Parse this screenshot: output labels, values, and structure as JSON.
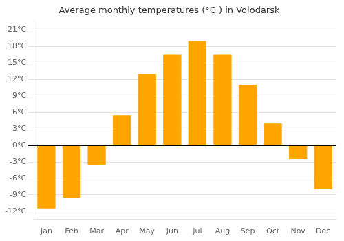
{
  "chart_data": {
    "type": "bar",
    "title": "Average monthly temperatures (°C ) in Volodarsk",
    "categories": [
      "Jan",
      "Feb",
      "Mar",
      "Apr",
      "May",
      "Jun",
      "Jul",
      "Aug",
      "Sep",
      "Oct",
      "Nov",
      "Dec"
    ],
    "values": [
      -11.5,
      -9.5,
      -3.5,
      5.5,
      13.0,
      16.5,
      19.0,
      16.5,
      11.0,
      4.0,
      -2.5,
      -8.0
    ],
    "color": "#FFA500",
    "ylim": [
      -13.5,
      22.5
    ],
    "yticks": [
      {
        "value": -12,
        "label": "-12°C"
      },
      {
        "value": -9,
        "label": "-9°C"
      },
      {
        "value": -6,
        "label": "-6°C"
      },
      {
        "value": -3,
        "label": "-3°C"
      },
      {
        "value": 0,
        "label": "0°C"
      },
      {
        "value": 3,
        "label": "3°C"
      },
      {
        "value": 6,
        "label": "6°C"
      },
      {
        "value": 9,
        "label": "9°C"
      },
      {
        "value": 12,
        "label": "12°C"
      },
      {
        "value": 15,
        "label": "15°C"
      },
      {
        "value": 18,
        "label": "18°C"
      },
      {
        "value": 21,
        "label": "21°C"
      }
    ],
    "grid": true
  }
}
